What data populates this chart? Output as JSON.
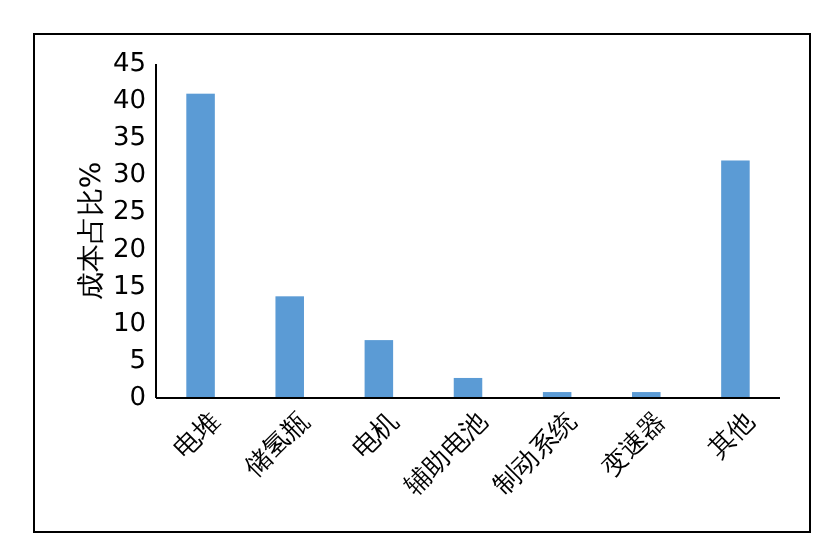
{
  "chart_data": {
    "type": "bar",
    "ylabel": "成本占比%",
    "categories": [
      "电堆",
      "储氢瓶",
      "电机",
      "辅助电池",
      "制动系统",
      "变速器",
      "其他"
    ],
    "values": [
      41,
      13.7,
      7.8,
      2.7,
      0.8,
      0.8,
      32
    ],
    "color": "#5b9bd5",
    "ylim": [
      0,
      45
    ],
    "yticks": [
      0,
      5,
      10,
      15,
      20,
      25,
      30,
      35,
      40,
      45
    ],
    "grid": false
  }
}
